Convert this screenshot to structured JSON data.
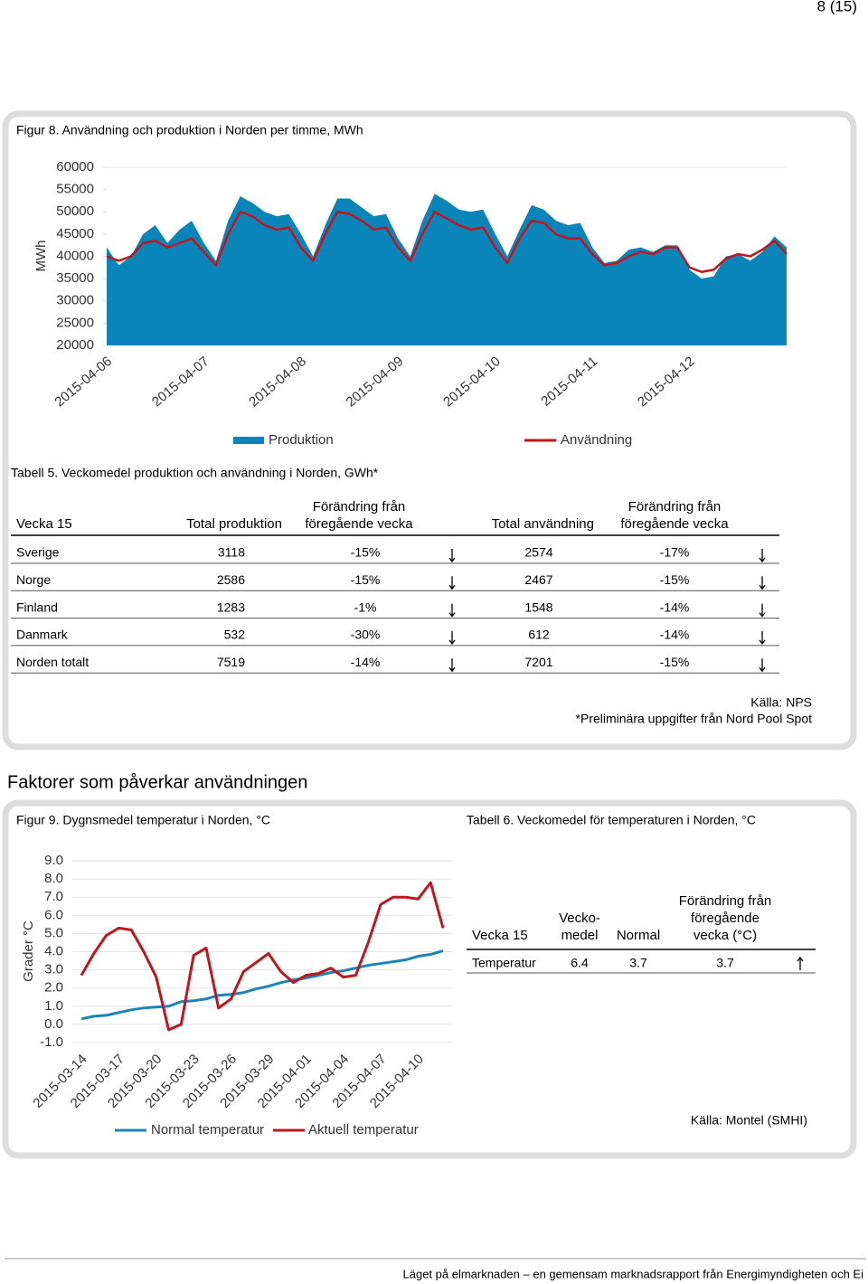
{
  "page_number": "8 (15)",
  "chart_data": [
    {
      "type": "combo",
      "title": "Figur 8. Användning och produktion i Norden per timme, MWh",
      "y_label": "MWh",
      "categories": [
        "2015-04-06",
        null,
        null,
        null,
        null,
        null,
        null,
        null,
        "2015-04-07",
        null,
        null,
        null,
        null,
        null,
        null,
        null,
        "2015-04-08",
        null,
        null,
        null,
        null,
        null,
        null,
        null,
        "2015-04-09",
        null,
        null,
        null,
        null,
        null,
        null,
        null,
        "2015-04-10",
        null,
        null,
        null,
        null,
        null,
        null,
        null,
        "2015-04-11",
        null,
        null,
        null,
        null,
        null,
        null,
        null,
        "2015-04-12",
        null,
        null,
        null,
        null,
        null,
        null,
        null,
        null
      ],
      "ylim": [
        20000,
        60000
      ],
      "yticks": [
        20000,
        25000,
        30000,
        35000,
        40000,
        45000,
        50000,
        55000,
        60000
      ],
      "grid": false,
      "series": [
        {
          "name": "Produktion",
          "type": "area",
          "color": "#0a85b9",
          "values": [
            42000,
            38000,
            40000,
            45000,
            47000,
            43000,
            46000,
            48000,
            43000,
            39000,
            48000,
            53500,
            52000,
            50000,
            49000,
            49500,
            45000,
            40000,
            47000,
            53000,
            53000,
            51000,
            49000,
            49500,
            44000,
            40000,
            48000,
            54000,
            52500,
            50500,
            50000,
            50500,
            45000,
            40000,
            46000,
            51500,
            50500,
            48000,
            47000,
            47500,
            42000,
            38500,
            39000,
            41500,
            42000,
            41000,
            42500,
            42500,
            37000,
            35000,
            35500,
            40000,
            40500,
            39000,
            41000,
            44500,
            42000
          ]
        },
        {
          "name": "Användning",
          "type": "line",
          "color": "#c0161d",
          "values": [
            40000,
            39000,
            40000,
            43000,
            43500,
            42000,
            43000,
            44000,
            41000,
            38000,
            45000,
            50000,
            49000,
            47000,
            46000,
            46500,
            42000,
            39000,
            45000,
            50000,
            49500,
            48000,
            46000,
            46500,
            42000,
            39000,
            45000,
            50000,
            48500,
            47000,
            46000,
            46500,
            42000,
            38500,
            44000,
            48000,
            47500,
            45000,
            44000,
            44000,
            40500,
            38000,
            38500,
            40000,
            41000,
            40500,
            42000,
            42000,
            37500,
            36500,
            37000,
            39500,
            40500,
            40000,
            41500,
            43500,
            40500
          ]
        }
      ]
    },
    {
      "type": "line",
      "title": "Figur 9. Dygnsmedel temperatur i Norden, °C",
      "y_label": "Grader °C",
      "categories": [
        "2015-03-14",
        null,
        null,
        "2015-03-17",
        null,
        null,
        "2015-03-20",
        null,
        null,
        "2015-03-23",
        null,
        null,
        "2015-03-26",
        null,
        null,
        "2015-03-29",
        null,
        null,
        "2015-04-01",
        null,
        null,
        "2015-04-04",
        null,
        null,
        "2015-04-07",
        null,
        null,
        "2015-04-10",
        null,
        null
      ],
      "ylim": [
        -1,
        9
      ],
      "yticks": [
        {
          "value": -1,
          "label": "-1.0"
        },
        {
          "value": 0,
          "label": "0.0"
        },
        {
          "value": 1,
          "label": "1.0"
        },
        {
          "value": 2,
          "label": "2.0"
        },
        {
          "value": 3,
          "label": "3.0"
        },
        {
          "value": 4,
          "label": "4.0"
        },
        {
          "value": 5,
          "label": "5.0"
        },
        {
          "value": 6,
          "label": "6.0"
        },
        {
          "value": 7,
          "label": "7.0"
        },
        {
          "value": 8,
          "label": "8.0"
        },
        {
          "value": 9,
          "label": "9.0"
        }
      ],
      "grid": true,
      "series": [
        {
          "name": "Normal temperatur",
          "color": "#1b85b8",
          "values": [
            0.3,
            0.45,
            0.5,
            0.65,
            0.8,
            0.9,
            0.95,
            1.0,
            1.25,
            1.3,
            1.4,
            1.6,
            1.65,
            1.75,
            1.95,
            2.1,
            2.3,
            2.45,
            2.55,
            2.7,
            2.85,
            2.95,
            3.1,
            3.25,
            3.35,
            3.45,
            3.55,
            3.75,
            3.85,
            4.05
          ]
        },
        {
          "name": "Aktuell temperatur",
          "color": "#c0161d",
          "values": [
            2.7,
            3.9,
            4.9,
            5.3,
            5.2,
            4.0,
            2.6,
            -0.3,
            0.0,
            3.8,
            4.2,
            0.9,
            1.4,
            2.9,
            3.4,
            3.9,
            2.9,
            2.3,
            2.7,
            2.8,
            3.1,
            2.6,
            2.7,
            4.5,
            6.6,
            7.0,
            7.0,
            6.9,
            7.8,
            5.3
          ]
        }
      ]
    }
  ],
  "table5": {
    "caption": "Tabell 5. Veckomedel produktion och användning i Norden, GWh*",
    "columns": [
      [
        "Vecka 15"
      ],
      [
        "Total produktion"
      ],
      [
        "Förändring från",
        "föregående vecka"
      ],
      [
        "Total användning"
      ],
      [
        "Förändring från",
        "föregående vecka"
      ]
    ],
    "rows": [
      [
        "Sverige",
        "3118",
        "-15%",
        "2574",
        "-17%"
      ],
      [
        "Norge",
        "2586",
        "-15%",
        "2467",
        "-15%"
      ],
      [
        "Finland",
        "1283",
        "-1%",
        "1548",
        "-14%"
      ],
      [
        "Danmark",
        "532",
        "-30%",
        "612",
        "-14%"
      ],
      [
        "Norden totalt",
        "7519",
        "-14%",
        "7201",
        "-15%"
      ]
    ],
    "notes": [
      "Källa: NPS",
      "*Preliminära uppgifter från Nord Pool Spot"
    ]
  },
  "section_heading": "Faktorer som påverkar användningen",
  "table6": {
    "caption": "Tabell 6. Veckomedel för temperaturen i Norden, °C",
    "columns": [
      [
        "Vecka 15"
      ],
      [
        "Vecko-",
        "medel"
      ],
      [
        "Normal"
      ],
      [
        "Förändring från",
        "föregående",
        "vecka (°C)"
      ]
    ],
    "rows": [
      [
        "Temperatur",
        "6.4",
        "3.7",
        "3.7"
      ]
    ],
    "note": "Källa: Montel (SMHI)"
  },
  "footer": "Läget på elmarknaden – en gemensam marknadsrapport från Energimyndigheten och Ei"
}
